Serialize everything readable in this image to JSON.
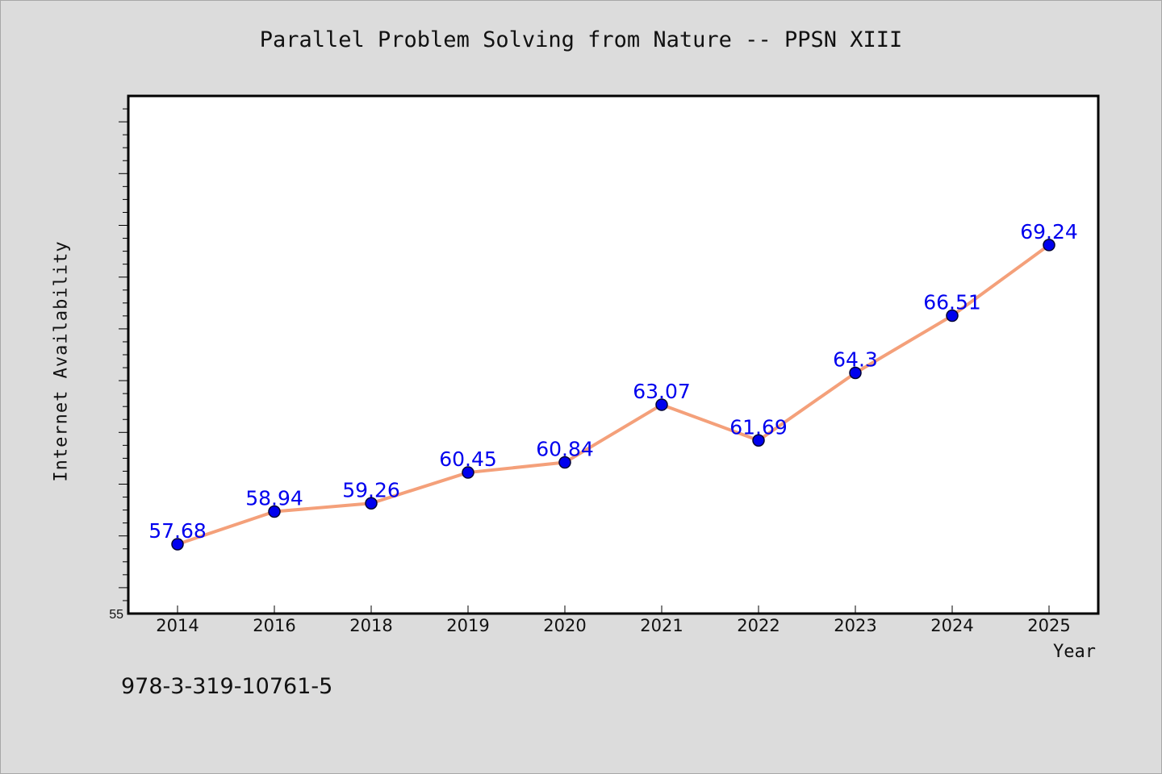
{
  "chart_data": {
    "type": "line",
    "title": "Parallel Problem Solving from Nature -- PPSN XIII",
    "xlabel": "Year",
    "ylabel": "Internet Availability",
    "categories": [
      "2014",
      "2016",
      "2018",
      "2019",
      "2020",
      "2021",
      "2022",
      "2023",
      "2024",
      "2025"
    ],
    "series": [
      {
        "values": [
          57.68,
          58.94,
          59.26,
          60.45,
          60.84,
          63.07,
          61.69,
          64.3,
          66.51,
          69.24
        ],
        "data_labels": [
          "57.68",
          "58.94",
          "59.26",
          "60.45",
          "60.84",
          "63.07",
          "61.69",
          "64.3",
          "66.51",
          "69.24"
        ],
        "line_color": "#f4a07a",
        "marker_color": "#0000ee"
      }
    ],
    "ylim": [
      55,
      75
    ],
    "y_tick_labels": [
      "55"
    ],
    "grid": false,
    "legend": "none",
    "label_color": "#0000ee"
  },
  "footer": {
    "isbn": "978-3-319-10761-5"
  }
}
